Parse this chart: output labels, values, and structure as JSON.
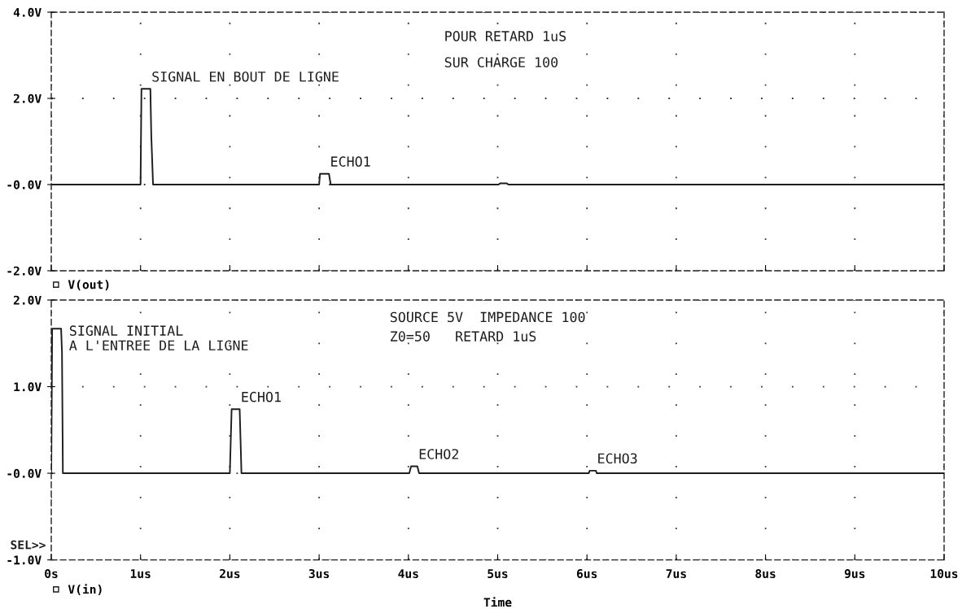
{
  "chart_data": [
    {
      "type": "line",
      "series": [
        {
          "name": "V(out)",
          "color": "#1e1e1e",
          "x": [
            0,
            1.0,
            1.01,
            1.11,
            1.12,
            1.14,
            3.0,
            3.01,
            3.11,
            3.13,
            5.01,
            5.03,
            5.1,
            5.12,
            10
          ],
          "values": [
            0,
            0,
            2.22,
            2.22,
            1.15,
            0,
            0,
            0.25,
            0.25,
            0,
            0,
            0.03,
            0.03,
            0,
            0
          ]
        }
      ],
      "xlim": [
        0,
        10
      ],
      "xticks": [
        {
          "value": 0,
          "label": null
        },
        {
          "value": 1,
          "label": null
        },
        {
          "value": 2,
          "label": null
        },
        {
          "value": 3,
          "label": null
        },
        {
          "value": 4,
          "label": null
        },
        {
          "value": 5,
          "label": null
        },
        {
          "value": 6,
          "label": null
        },
        {
          "value": 7,
          "label": null
        },
        {
          "value": 8,
          "label": null
        },
        {
          "value": 9,
          "label": null
        },
        {
          "value": 10,
          "label": null
        }
      ],
      "ylim": [
        -2,
        4
      ],
      "yticks": [
        {
          "value": -2,
          "label": "-2.0V"
        },
        {
          "value": 0,
          "label": "-0.0V"
        },
        {
          "value": 2,
          "label": "2.0V"
        },
        {
          "value": 4,
          "label": "4.0V"
        }
      ],
      "grid": true,
      "legend": "bottom left",
      "tick_labels": "y",
      "annotations": [
        "POUR RETARD 1uS",
        "SUR CHARGE 100",
        {
          "text": "SIGNAL EN BOUT DE LIGNE",
          "x": 1.11,
          "y": 2.22
        },
        {
          "text": "ECHO1",
          "x": 3.11,
          "y": 0.25
        }
      ]
    },
    {
      "type": "line",
      "series": [
        {
          "name": "V(in)",
          "color": "#1e1e1e",
          "x": [
            0,
            0.01,
            0.11,
            0.12,
            0.13,
            2.0,
            2.02,
            2.11,
            2.12,
            2.13,
            4.01,
            4.03,
            4.1,
            4.12,
            6.02,
            6.03,
            6.1,
            6.11,
            10
          ],
          "values": [
            0,
            1.67,
            1.67,
            1.4,
            0,
            0,
            0.74,
            0.74,
            0.38,
            0,
            0,
            0.08,
            0.08,
            0,
            0,
            0.03,
            0.03,
            0,
            0
          ]
        }
      ],
      "xlim": [
        0,
        10
      ],
      "xticks": [
        {
          "value": 0,
          "label": "0s"
        },
        {
          "value": 1,
          "label": "1us"
        },
        {
          "value": 2,
          "label": "2us"
        },
        {
          "value": 3,
          "label": "3us"
        },
        {
          "value": 4,
          "label": "4us"
        },
        {
          "value": 5,
          "label": "5us"
        },
        {
          "value": 6,
          "label": "6us"
        },
        {
          "value": 7,
          "label": "7us"
        },
        {
          "value": 8,
          "label": "8us"
        },
        {
          "value": 9,
          "label": "9us"
        },
        {
          "value": 10,
          "label": "10us"
        }
      ],
      "ylim": [
        -1,
        2
      ],
      "yticks": [
        {
          "value": -1,
          "label": "-1.0V"
        },
        {
          "value": 0,
          "label": "-0.0V"
        },
        {
          "value": 1,
          "label": "1.0V"
        },
        {
          "value": 2,
          "label": "2.0V"
        }
      ],
      "xlabel": "Time",
      "grid": true,
      "legend": "bottom left",
      "annotations": [
        "SOURCE 5V  IMPEDANCE 100",
        "Z0=50   RETARD 1uS",
        "SEL>>",
        {
          "text": "SIGNAL INITIAL\nA L'ENTREE DE LA LIGNE",
          "x": 0.11,
          "y": 1.67
        },
        {
          "text": "ECHO1",
          "x": 2.11,
          "y": 0.74
        },
        {
          "text": "ECHO2",
          "x": 4.1,
          "y": 0.08
        },
        {
          "text": "ECHO3",
          "x": 6.1,
          "y": 0.03
        }
      ]
    }
  ]
}
